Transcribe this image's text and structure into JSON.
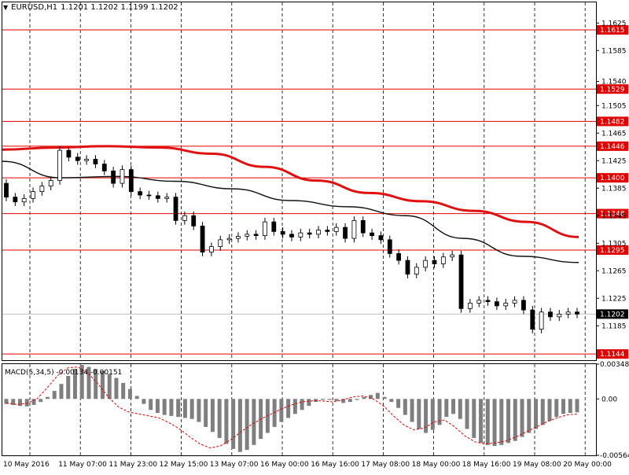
{
  "header": {
    "symbol_timeframe": "EURUSD,H1",
    "ohlc": "1.1201 1.1202 1.1199 1.1202",
    "arrow_icon": "triangle-down-icon"
  },
  "macd_label": "MACD(5,34,5) -0.00134 -0.00151",
  "colors": {
    "level_line": "#e00000",
    "ma_slow": "#e01010",
    "ma_fast": "#111111",
    "candle": "#000000",
    "bull_fill": "#ffffff",
    "bear_fill": "#000000",
    "macd_bar": "#7f7f7f",
    "macd_signal": "#e00000",
    "grid": "#000000",
    "current_price_line": "#c0c0c0"
  },
  "chart_data": [
    {
      "type": "candlestick",
      "title": "EURUSD,H1",
      "ylim": [
        1.1135,
        1.1655
      ],
      "yticks": [
        "1.1625",
        "1.1585",
        "1.1540",
        "1.1505",
        "1.1465",
        "1.1425",
        "1.1385",
        "1.1345",
        "1.1305",
        "1.1265",
        "1.1225",
        "1.1185"
      ],
      "x_tick_labels": [
        "10 May 2016",
        "11 May 07:00",
        "11 May 23:00",
        "12 May 15:00",
        "13 May 07:00",
        "16 May 00:00",
        "16 May 16:00",
        "17 May 08:00",
        "18 May 00:00",
        "18 May 16:00",
        "19 May 08:00",
        "20 May 00:00"
      ],
      "horizontal_levels": [
        "1.1615",
        "1.1529",
        "1.1482",
        "1.1446",
        "1.1400",
        "1.1348",
        "1.1295",
        "1.1144"
      ],
      "current_price": "1.1202",
      "ma_slow": [
        1.1441,
        1.1444,
        1.1446,
        1.1444,
        1.1435,
        1.1416,
        1.1396,
        1.1378,
        1.1366,
        1.1352,
        1.1336,
        1.1314
      ],
      "ma_fast": [
        1.1424,
        1.14,
        1.1402,
        1.1395,
        1.1384,
        1.1367,
        1.1358,
        1.1345,
        1.1312,
        1.1286,
        1.1277
      ],
      "candles": [
        [
          1.1392,
          1.1372
        ],
        [
          1.1372,
          1.1365
        ],
        [
          1.1365,
          1.137
        ],
        [
          1.137,
          1.138
        ],
        [
          1.138,
          1.1388
        ],
        [
          1.1388,
          1.1396
        ],
        [
          1.1396,
          1.144
        ],
        [
          1.144,
          1.143
        ],
        [
          1.143,
          1.1425
        ],
        [
          1.1425,
          1.1427
        ],
        [
          1.1427,
          1.142
        ],
        [
          1.142,
          1.141
        ],
        [
          1.141,
          1.1392
        ],
        [
          1.1392,
          1.1412
        ],
        [
          1.1412,
          1.138
        ],
        [
          1.138,
          1.1375
        ],
        [
          1.1375,
          1.1374
        ],
        [
          1.1374,
          1.137
        ],
        [
          1.137,
          1.1372
        ],
        [
          1.1372,
          1.1338
        ],
        [
          1.1338,
          1.1345
        ],
        [
          1.1345,
          1.133
        ],
        [
          1.133,
          1.1292
        ],
        [
          1.1292,
          1.13
        ],
        [
          1.13,
          1.131
        ],
        [
          1.131,
          1.1312
        ],
        [
          1.1312,
          1.1315
        ],
        [
          1.1315,
          1.1318
        ],
        [
          1.1318,
          1.1316
        ],
        [
          1.1316,
          1.1336
        ],
        [
          1.1336,
          1.1322
        ],
        [
          1.1322,
          1.1318
        ],
        [
          1.1318,
          1.1314
        ],
        [
          1.1314,
          1.132
        ],
        [
          1.132,
          1.1318
        ],
        [
          1.1318,
          1.1324
        ],
        [
          1.1324,
          1.1322
        ],
        [
          1.1322,
          1.1328
        ],
        [
          1.1328,
          1.1312
        ],
        [
          1.1312,
          1.1338
        ],
        [
          1.1338,
          1.132
        ],
        [
          1.132,
          1.1316
        ],
        [
          1.1316,
          1.131
        ],
        [
          1.131,
          1.129
        ],
        [
          1.129,
          1.128
        ],
        [
          1.128,
          1.126
        ],
        [
          1.126,
          1.127
        ],
        [
          1.127,
          1.128
        ],
        [
          1.128,
          1.1275
        ],
        [
          1.1275,
          1.1285
        ],
        [
          1.1285,
          1.1288
        ],
        [
          1.1288,
          1.121
        ],
        [
          1.121,
          1.1218
        ],
        [
          1.1218,
          1.1222
        ],
        [
          1.1222,
          1.122
        ],
        [
          1.122,
          1.1214
        ],
        [
          1.1214,
          1.1218
        ],
        [
          1.1218,
          1.1222
        ],
        [
          1.1222,
          1.1208
        ],
        [
          1.1208,
          1.118
        ],
        [
          1.118,
          1.1205
        ],
        [
          1.1205,
          1.1198
        ],
        [
          1.1198,
          1.1202
        ],
        [
          1.1202,
          1.1205
        ],
        [
          1.1205,
          1.1202
        ]
      ]
    },
    {
      "type": "bar",
      "title": "MACD(5,34,5) -0.00134 -0.00151",
      "ylim": [
        -0.00564,
        0.00348
      ],
      "yticks": [
        "0.00348",
        "0.00",
        "-0.00564"
      ],
      "values": [
        -0.0005,
        -0.0006,
        -0.0007,
        -0.00075,
        -0.0006,
        -0.0003,
        0.0002,
        0.0008,
        0.0015,
        0.0023,
        0.003,
        0.0034,
        0.0032,
        0.003,
        0.0028,
        0.0025,
        0.0021,
        0.0016,
        0.001,
        0.0003,
        -0.0005,
        -0.0011,
        -0.0014,
        -0.0016,
        -0.0017,
        -0.0018,
        -0.0019,
        -0.002,
        -0.0023,
        -0.0028,
        -0.0033,
        -0.0039,
        -0.0045,
        -0.005,
        -0.0053,
        -0.0051,
        -0.0046,
        -0.004,
        -0.0034,
        -0.0028,
        -0.0023,
        -0.0019,
        -0.0015,
        -0.0011,
        -0.0007,
        -0.0003,
        -0.0001,
        -0.0001,
        -0.0002,
        -0.0004,
        -0.0003,
        -0.0001,
        0.0002,
        0.0004,
        0.0006,
        0.0002,
        -0.0003,
        -0.0009,
        -0.0016,
        -0.0023,
        -0.003,
        -0.0034,
        -0.0031,
        -0.0026,
        -0.0018,
        -0.0015,
        -0.002,
        -0.003,
        -0.0039,
        -0.0044,
        -0.0046,
        -0.0047,
        -0.0046,
        -0.0044,
        -0.0042,
        -0.0038,
        -0.0034,
        -0.003,
        -0.0026,
        -0.0022,
        -0.0018,
        -0.0015,
        -0.0014,
        -0.00134
      ],
      "signal": [
        -0.0004,
        -0.00055,
        -0.00045,
        0.0,
        0.0011,
        0.0023,
        0.0031,
        0.0032,
        0.0026,
        0.0015,
        0.0002,
        -0.0008,
        -0.0013,
        -0.0015,
        -0.0017,
        -0.0019,
        -0.0024,
        -0.003,
        -0.0038,
        -0.0045,
        -0.0049,
        -0.0047,
        -0.0041,
        -0.0033,
        -0.0026,
        -0.002,
        -0.0015,
        -0.001,
        -0.0006,
        -0.0003,
        -0.0002,
        -0.0002,
        -0.0003,
        -0.0001,
        0.0002,
        0.0003,
        0.0,
        -0.0007,
        -0.0017,
        -0.0026,
        -0.0031,
        -0.0029,
        -0.0023,
        -0.0021,
        -0.0028,
        -0.0037,
        -0.0043,
        -0.0045,
        -0.0044,
        -0.0042,
        -0.0038,
        -0.0033,
        -0.0028,
        -0.0023,
        -0.0019,
        -0.0016,
        -0.00151
      ]
    }
  ]
}
